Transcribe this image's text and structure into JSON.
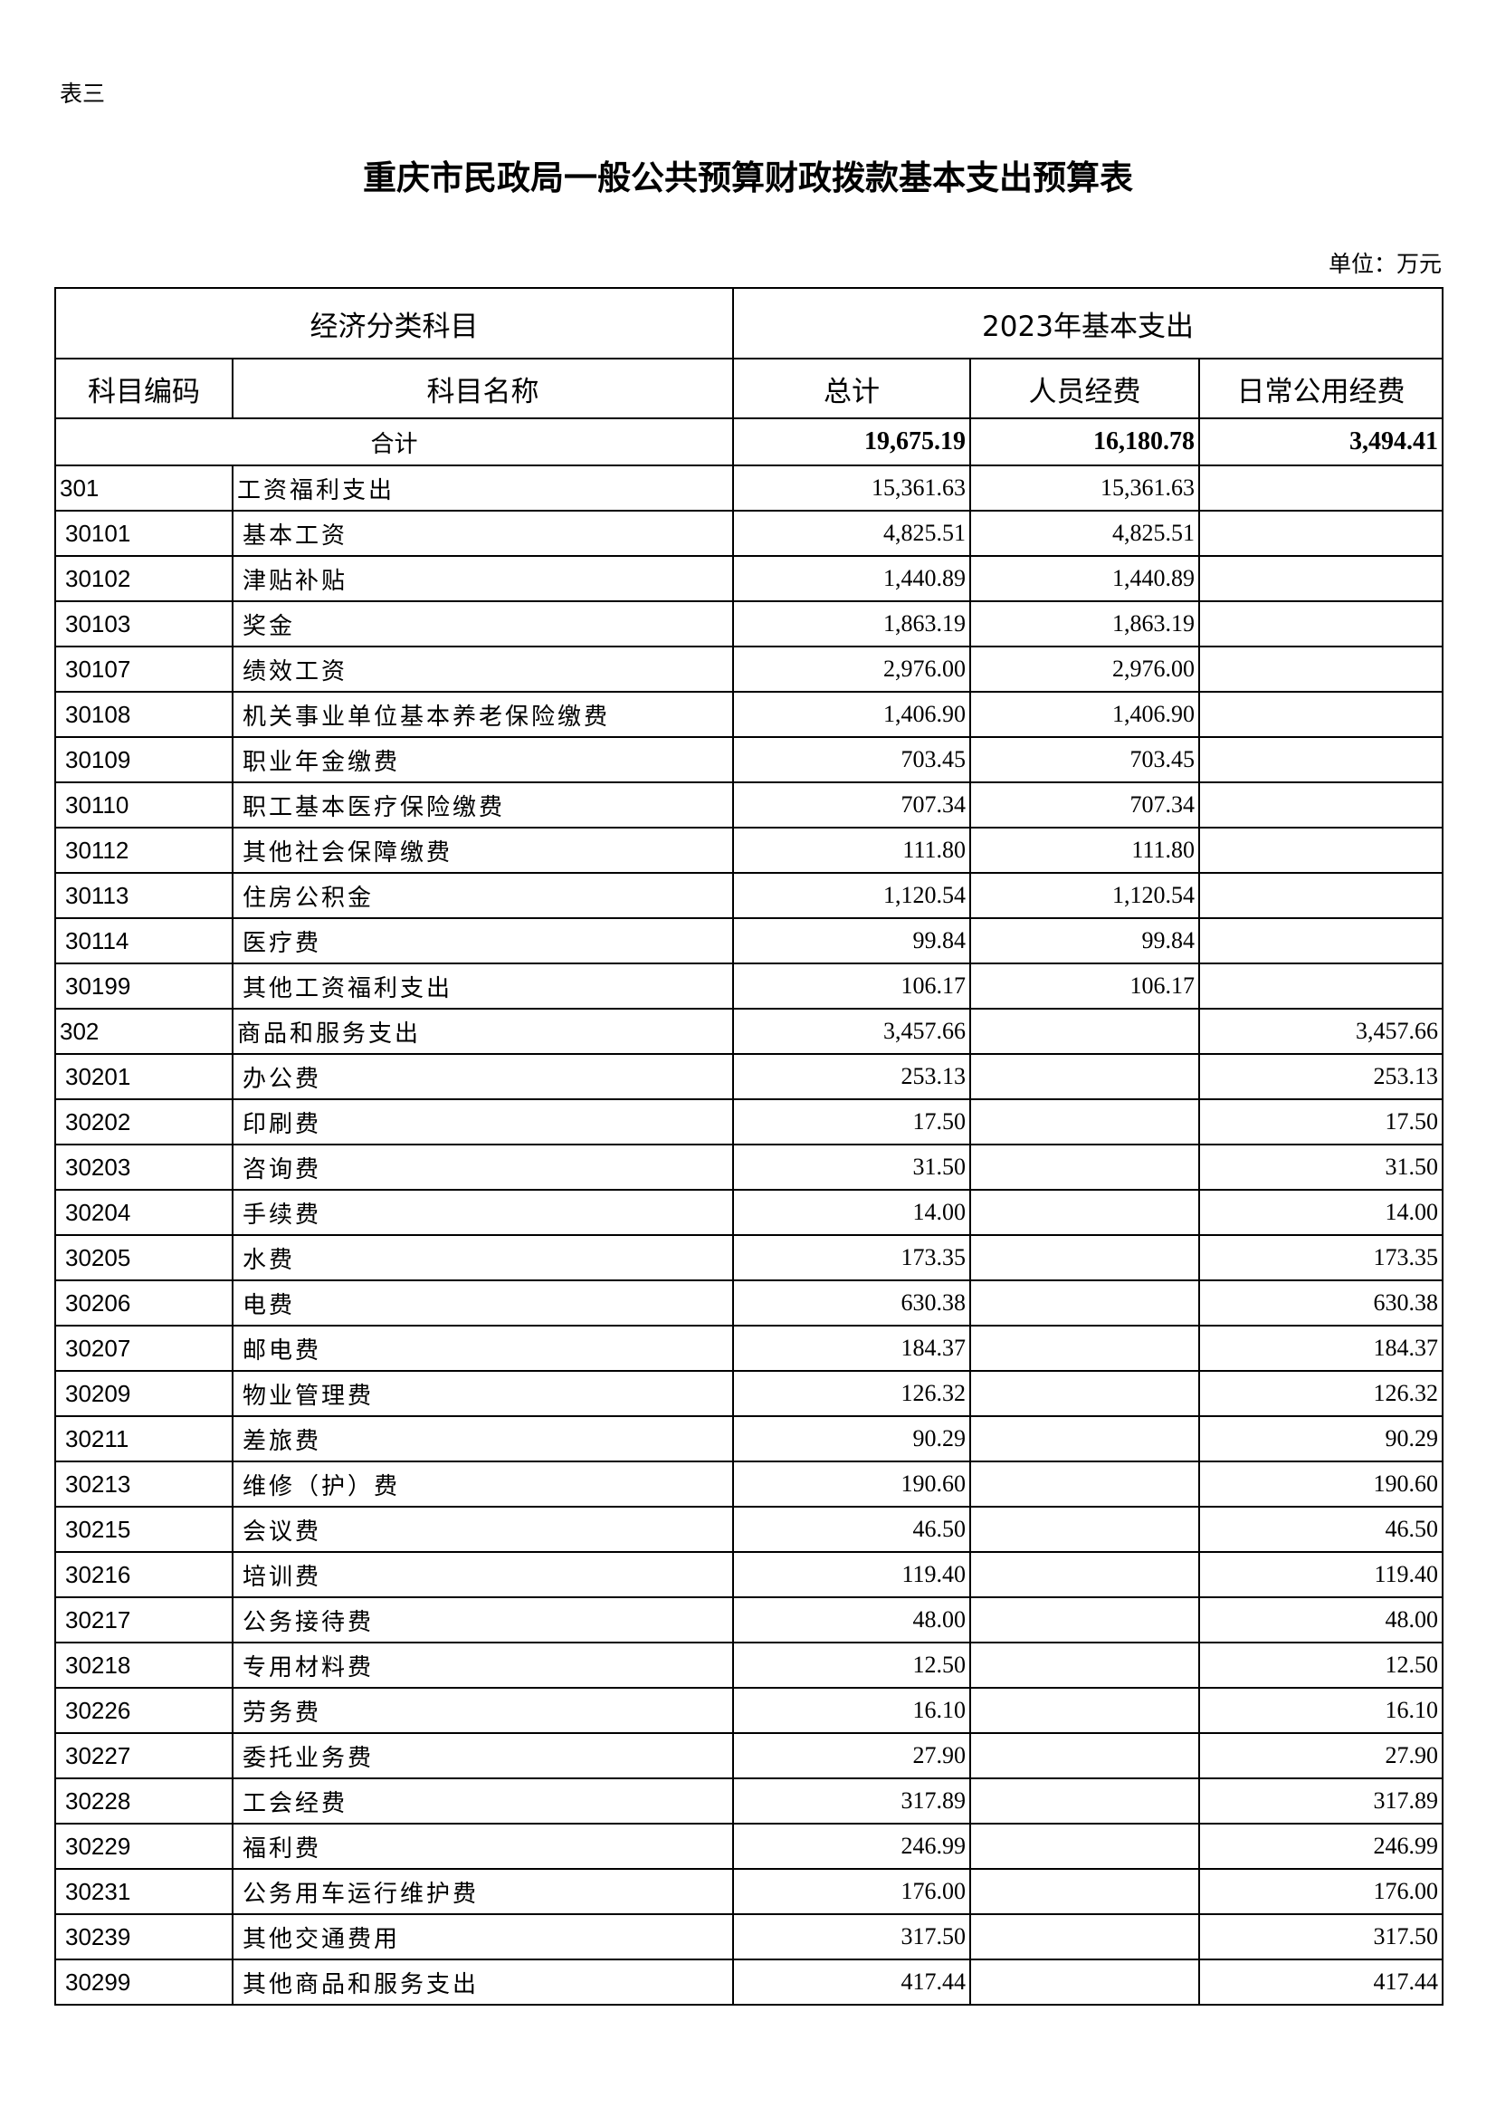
{
  "doc_label": "表三",
  "title": "重庆市民政局一般公共预算财政拨款基本支出预算表",
  "unit": "单位：万元",
  "header": {
    "group_left": "经济分类科目",
    "group_right": "2023年基本支出",
    "columns": [
      "科目编码",
      "科目名称",
      "总计",
      "人员经费",
      "日常公用经费"
    ]
  },
  "total": {
    "label": "合计",
    "total": "19,675.19",
    "personnel": "16,180.78",
    "public": "3,494.41"
  },
  "rows": [
    {
      "code": "301",
      "name": "工资福利支出",
      "total": "15,361.63",
      "personnel": "15,361.63",
      "public": "",
      "top": true
    },
    {
      "code": "30101",
      "name": "基本工资",
      "total": "4,825.51",
      "personnel": "4,825.51",
      "public": ""
    },
    {
      "code": "30102",
      "name": "津贴补贴",
      "total": "1,440.89",
      "personnel": "1,440.89",
      "public": ""
    },
    {
      "code": "30103",
      "name": "奖金",
      "total": "1,863.19",
      "personnel": "1,863.19",
      "public": ""
    },
    {
      "code": "30107",
      "name": "绩效工资",
      "total": "2,976.00",
      "personnel": "2,976.00",
      "public": ""
    },
    {
      "code": "30108",
      "name": "机关事业单位基本养老保险缴费",
      "total": "1,406.90",
      "personnel": "1,406.90",
      "public": ""
    },
    {
      "code": "30109",
      "name": "职业年金缴费",
      "total": "703.45",
      "personnel": "703.45",
      "public": ""
    },
    {
      "code": "30110",
      "name": "职工基本医疗保险缴费",
      "total": "707.34",
      "personnel": "707.34",
      "public": ""
    },
    {
      "code": "30112",
      "name": "其他社会保障缴费",
      "total": "111.80",
      "personnel": "111.80",
      "public": ""
    },
    {
      "code": "30113",
      "name": "住房公积金",
      "total": "1,120.54",
      "personnel": "1,120.54",
      "public": ""
    },
    {
      "code": "30114",
      "name": "医疗费",
      "total": "99.84",
      "personnel": "99.84",
      "public": ""
    },
    {
      "code": "30199",
      "name": "其他工资福利支出",
      "total": "106.17",
      "personnel": "106.17",
      "public": ""
    },
    {
      "code": "302",
      "name": "商品和服务支出",
      "total": "3,457.66",
      "personnel": "",
      "public": "3,457.66",
      "top": true
    },
    {
      "code": "30201",
      "name": "办公费",
      "total": "253.13",
      "personnel": "",
      "public": "253.13"
    },
    {
      "code": "30202",
      "name": "印刷费",
      "total": "17.50",
      "personnel": "",
      "public": "17.50"
    },
    {
      "code": "30203",
      "name": "咨询费",
      "total": "31.50",
      "personnel": "",
      "public": "31.50"
    },
    {
      "code": "30204",
      "name": "手续费",
      "total": "14.00",
      "personnel": "",
      "public": "14.00"
    },
    {
      "code": "30205",
      "name": "水费",
      "total": "173.35",
      "personnel": "",
      "public": "173.35"
    },
    {
      "code": "30206",
      "name": "电费",
      "total": "630.38",
      "personnel": "",
      "public": "630.38"
    },
    {
      "code": "30207",
      "name": "邮电费",
      "total": "184.37",
      "personnel": "",
      "public": "184.37"
    },
    {
      "code": "30209",
      "name": "物业管理费",
      "total": "126.32",
      "personnel": "",
      "public": "126.32"
    },
    {
      "code": "30211",
      "name": "差旅费",
      "total": "90.29",
      "personnel": "",
      "public": "90.29"
    },
    {
      "code": "30213",
      "name": "维修（护）费",
      "total": "190.60",
      "personnel": "",
      "public": "190.60"
    },
    {
      "code": "30215",
      "name": "会议费",
      "total": "46.50",
      "personnel": "",
      "public": "46.50"
    },
    {
      "code": "30216",
      "name": "培训费",
      "total": "119.40",
      "personnel": "",
      "public": "119.40"
    },
    {
      "code": "30217",
      "name": "公务接待费",
      "total": "48.00",
      "personnel": "",
      "public": "48.00"
    },
    {
      "code": "30218",
      "name": "专用材料费",
      "total": "12.50",
      "personnel": "",
      "public": "12.50"
    },
    {
      "code": "30226",
      "name": "劳务费",
      "total": "16.10",
      "personnel": "",
      "public": "16.10"
    },
    {
      "code": "30227",
      "name": "委托业务费",
      "total": "27.90",
      "personnel": "",
      "public": "27.90"
    },
    {
      "code": "30228",
      "name": "工会经费",
      "total": "317.89",
      "personnel": "",
      "public": "317.89"
    },
    {
      "code": "30229",
      "name": "福利费",
      "total": "246.99",
      "personnel": "",
      "public": "246.99"
    },
    {
      "code": "30231",
      "name": "公务用车运行维护费",
      "total": "176.00",
      "personnel": "",
      "public": "176.00"
    },
    {
      "code": "30239",
      "name": "其他交通费用",
      "total": "317.50",
      "personnel": "",
      "public": "317.50"
    },
    {
      "code": "30299",
      "name": "其他商品和服务支出",
      "total": "417.44",
      "personnel": "",
      "public": "417.44"
    }
  ]
}
